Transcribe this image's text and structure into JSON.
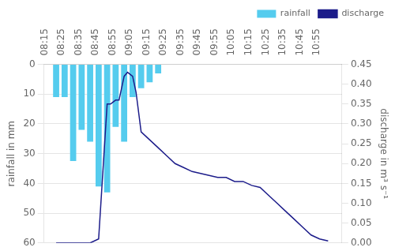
{
  "chart_data": {
    "type": "bar",
    "ylabel": "rainfall in mm",
    "y2label": "discharge in m³ s⁻¹",
    "series": [
      {
        "name": "rainfall",
        "type": "bar",
        "color": "#55CCEE",
        "x": [
          0,
          5,
          10,
          15,
          20,
          25,
          30,
          35,
          40,
          45,
          50,
          55,
          60
        ],
        "values": [
          11,
          11,
          32.5,
          22,
          26,
          41,
          43,
          21,
          26,
          11,
          8,
          6,
          3
        ]
      },
      {
        "name": "discharge",
        "type": "line",
        "color": "#1C1C8A",
        "axis": "y2",
        "x": [
          0,
          15,
          20,
          25,
          30,
          32,
          35,
          37,
          40,
          42,
          45,
          47,
          50,
          55,
          60,
          65,
          70,
          75,
          80,
          85,
          90,
          95,
          100,
          105,
          110,
          115,
          120,
          125,
          130,
          135,
          140,
          145,
          150,
          155,
          160
        ],
        "values": [
          0,
          0,
          0,
          0.01,
          0.35,
          0.35,
          0.36,
          0.36,
          0.42,
          0.43,
          0.42,
          0.38,
          0.28,
          0.26,
          0.24,
          0.22,
          0.2,
          0.19,
          0.18,
          0.175,
          0.17,
          0.165,
          0.165,
          0.155,
          0.155,
          0.145,
          0.14,
          0.12,
          0.1,
          0.08,
          0.06,
          0.04,
          0.02,
          0.01,
          0.005
        ]
      }
    ],
    "xlim": [
      -2,
      163
    ],
    "xticks": [
      {
        "value": 0,
        "label": "08:15"
      },
      {
        "value": 10,
        "label": "08:25"
      },
      {
        "value": 20,
        "label": "08:35"
      },
      {
        "value": 30,
        "label": "08:45"
      },
      {
        "value": 40,
        "label": "08:55"
      },
      {
        "value": 50,
        "label": "09:05"
      },
      {
        "value": 60,
        "label": "09:15"
      },
      {
        "value": 70,
        "label": "09:25"
      },
      {
        "value": 80,
        "label": "09:35"
      },
      {
        "value": 90,
        "label": "09:45"
      },
      {
        "value": 100,
        "label": "09:55"
      },
      {
        "value": 110,
        "label": "10:05"
      },
      {
        "value": 120,
        "label": "10:15"
      },
      {
        "value": 130,
        "label": "10:25"
      },
      {
        "value": 140,
        "label": "10:35"
      },
      {
        "value": 150,
        "label": "10:45"
      },
      {
        "value": 160,
        "label": "10:55"
      }
    ],
    "ylim": [
      60,
      0
    ],
    "yticks": [
      0,
      10,
      20,
      30,
      40,
      50,
      60
    ],
    "y2lim": [
      0,
      0.45
    ],
    "y2ticks": [
      {
        "value": 0,
        "label": "0.00"
      },
      {
        "value": 0.05,
        "label": "0.05"
      },
      {
        "value": 0.1,
        "label": "0.10"
      },
      {
        "value": 0.15,
        "label": "0.15"
      },
      {
        "value": 0.2,
        "label": "0.20"
      },
      {
        "value": 0.25,
        "label": "0.25"
      },
      {
        "value": 0.3,
        "label": "0.30"
      },
      {
        "value": 0.35,
        "label": "0.35"
      },
      {
        "value": 0.4,
        "label": "0.40"
      },
      {
        "value": 0.45,
        "label": "0.45"
      }
    ],
    "grid": true,
    "legend": "upper right"
  }
}
